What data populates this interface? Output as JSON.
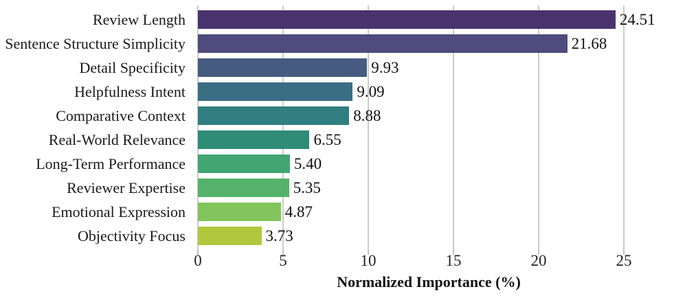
{
  "chart_data": {
    "type": "bar",
    "orientation": "horizontal",
    "title": "",
    "xlabel": "Normalized Importance (%)",
    "ylabel": "",
    "categories": [
      "Review Length",
      "Sentence Structure Simplicity",
      "Detail Specificity",
      "Helpfulness Intent",
      "Comparative Context",
      "Real-World Relevance",
      "Long-Term Performance",
      "Reviewer Expertise",
      "Emotional Expression",
      "Objectivity Focus"
    ],
    "values": [
      24.51,
      21.68,
      9.93,
      9.09,
      8.88,
      6.55,
      5.4,
      5.35,
      4.87,
      3.73
    ],
    "value_labels": [
      "24.51",
      "21.68",
      "9.93",
      "9.09",
      "8.88",
      "6.55",
      "5.40",
      "5.35",
      "4.87",
      "3.73"
    ],
    "bar_colors": [
      "#4a326e",
      "#4d4c7d",
      "#455c80",
      "#3a6e84",
      "#317e80",
      "#2e8c77",
      "#42a573",
      "#55b26a",
      "#82c55c",
      "#b1c83e"
    ],
    "xticks": [
      0,
      5,
      10,
      15,
      20,
      25
    ],
    "xtick_labels": [
      "0",
      "5",
      "10",
      "15",
      "20",
      "25"
    ],
    "xlim": [
      0,
      27.1
    ],
    "grid": "vertical gridlines at xticks, light gray, drawn behind bars",
    "legend": "none",
    "palette": "viridis (muted/desaturated)"
  },
  "style": {
    "background": "#ffffff",
    "grid_color": "#cbcbcb",
    "tick_color": "#c2c2c2",
    "text_color": "#1a1a1a"
  }
}
